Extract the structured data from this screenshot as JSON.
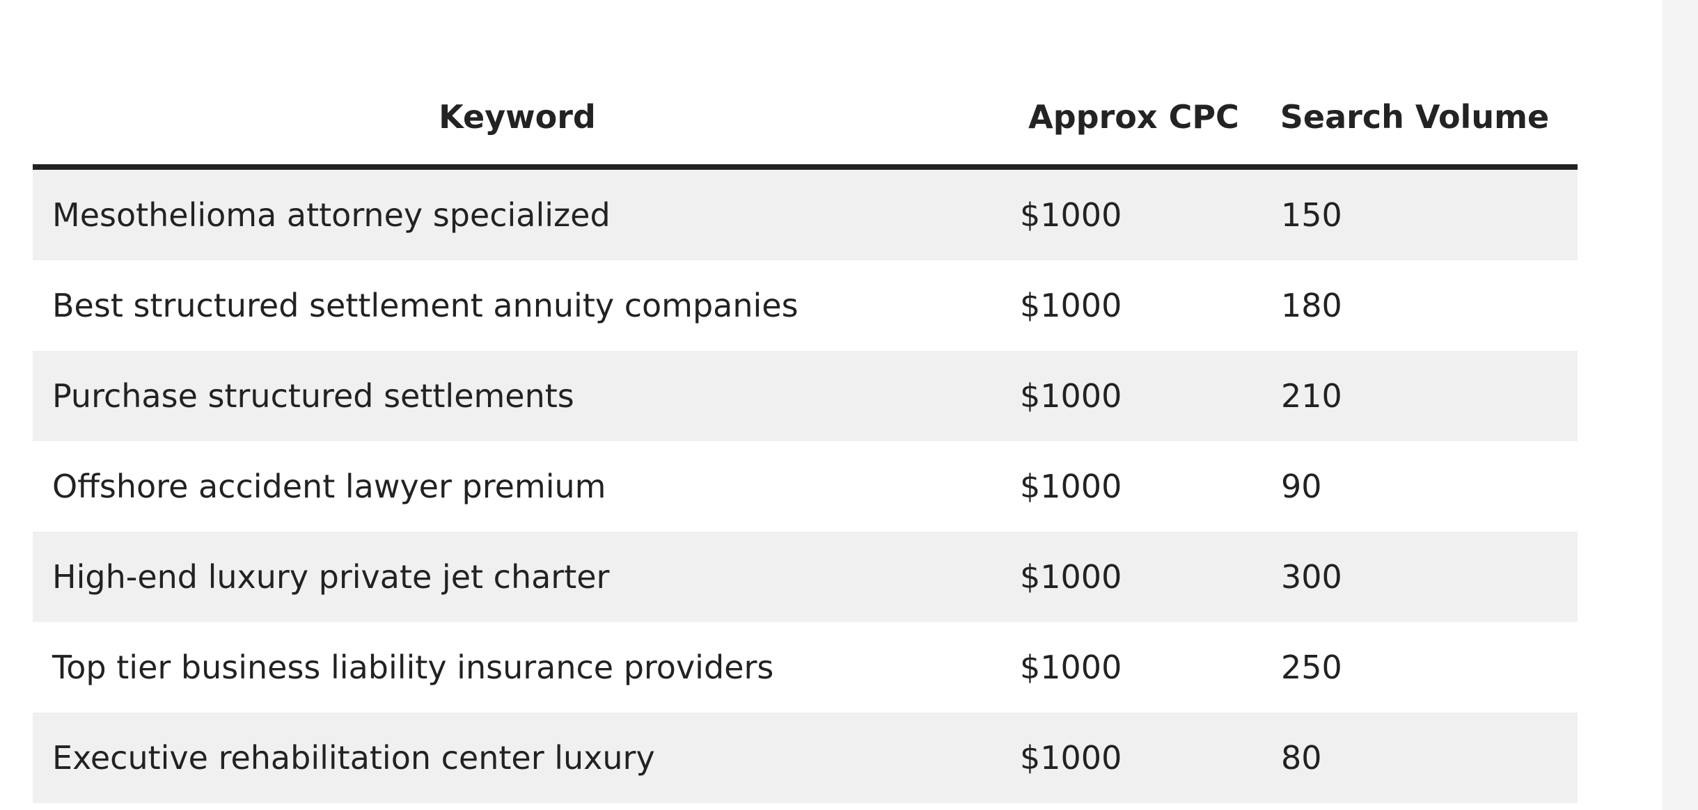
{
  "table": {
    "headers": {
      "keyword": "Keyword",
      "cpc": "Approx CPC",
      "volume": "Search Volume"
    },
    "rows": [
      {
        "keyword": "Mesothelioma attorney specialized",
        "cpc": "$1000",
        "volume": "150"
      },
      {
        "keyword": "Best structured settlement annuity companies",
        "cpc": "$1000",
        "volume": "180"
      },
      {
        "keyword": "Purchase structured settlements",
        "cpc": "$1000",
        "volume": "210"
      },
      {
        "keyword": "Offshore accident lawyer premium",
        "cpc": "$1000",
        "volume": "90"
      },
      {
        "keyword": "High-end luxury private jet charter",
        "cpc": "$1000",
        "volume": "300"
      },
      {
        "keyword": "Top tier business liability insurance providers",
        "cpc": "$1000",
        "volume": "250"
      },
      {
        "keyword": "Executive rehabilitation center luxury",
        "cpc": "$1000",
        "volume": "80"
      }
    ]
  }
}
